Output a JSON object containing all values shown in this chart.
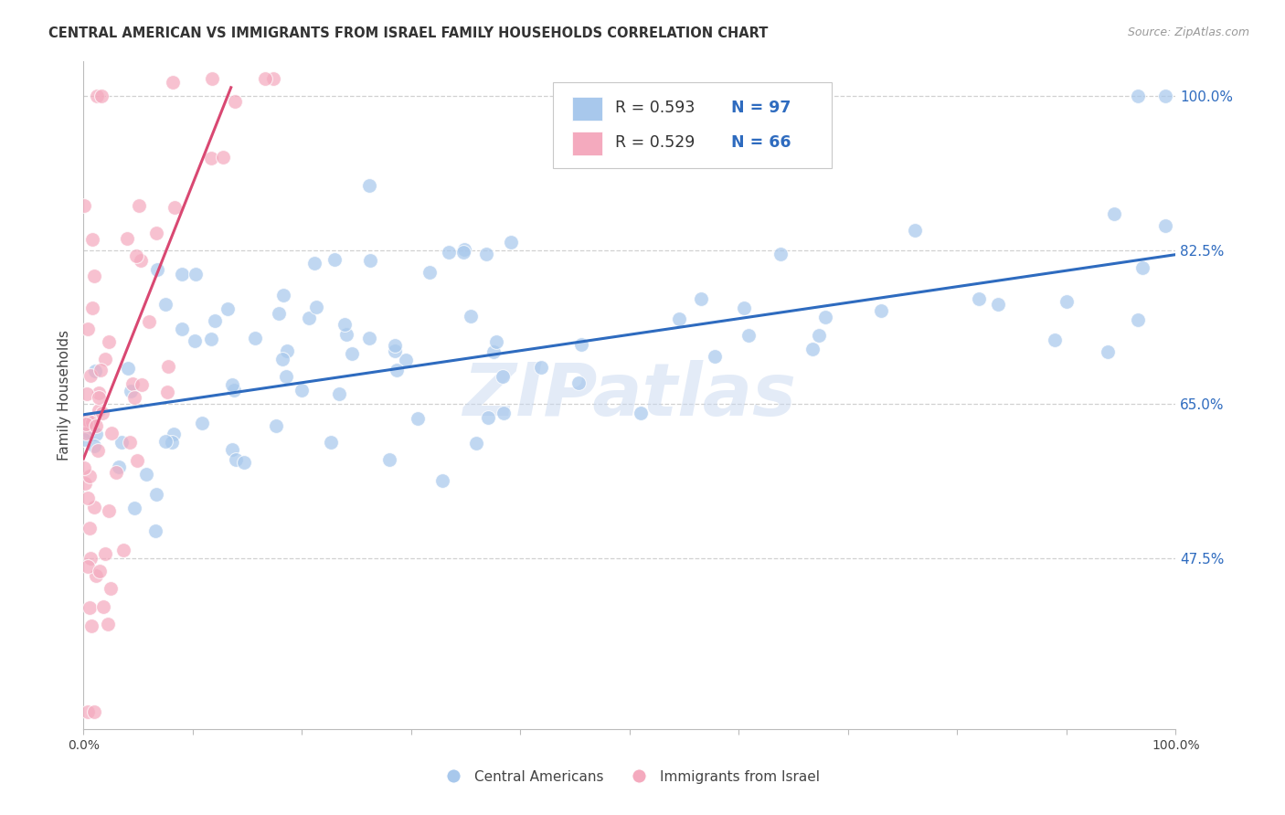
{
  "title": "CENTRAL AMERICAN VS IMMIGRANTS FROM ISRAEL FAMILY HOUSEHOLDS CORRELATION CHART",
  "source": "Source: ZipAtlas.com",
  "ylabel": "Family Households",
  "background_color": "#FFFFFF",
  "grid_color": "#CCCCCC",
  "title_color": "#333333",
  "source_color": "#999999",
  "blue_color": "#A8C8EC",
  "pink_color": "#F4AABE",
  "line_blue": "#2E6BBF",
  "line_pink": "#D94872",
  "ytick_labels": [
    "100.0%",
    "82.5%",
    "65.0%",
    "47.5%"
  ],
  "ytick_values": [
    1.0,
    0.825,
    0.65,
    0.475
  ],
  "xlim": [
    0.0,
    1.0
  ],
  "ylim": [
    0.28,
    1.04
  ],
  "blue_line_x0": 0.0,
  "blue_line_x1": 1.0,
  "blue_line_y0": 0.638,
  "blue_line_y1": 0.82,
  "pink_line_x0": 0.0,
  "pink_line_x1": 0.135,
  "pink_line_y0": 0.588,
  "pink_line_y1": 1.01,
  "watermark": "ZIPatlas",
  "legend_r1": "R = 0.593",
  "legend_n1": "N = 97",
  "legend_r2": "R = 0.529",
  "legend_n2": "N = 66",
  "legend_text_color": "#333333",
  "legend_n_color": "#2E6BBF"
}
